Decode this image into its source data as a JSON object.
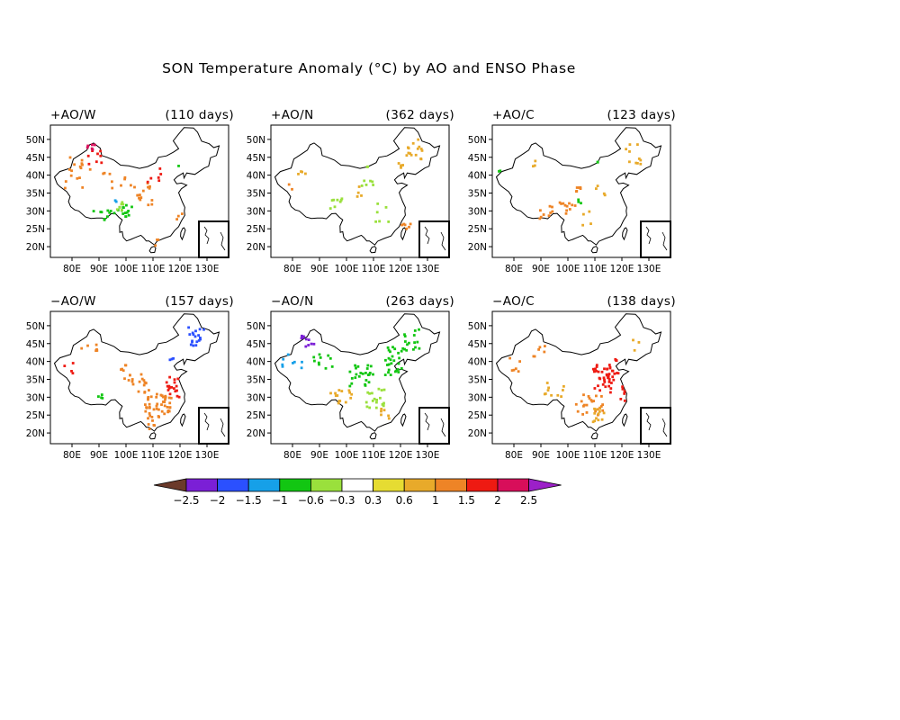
{
  "title": "SON Temperature Anomaly (°C) by AO and ENSO Phase",
  "x_ticks": [
    "80E",
    "90E",
    "100E",
    "110E",
    "120E",
    "130E"
  ],
  "y_ticks": [
    "50N",
    "45N",
    "40N",
    "35N",
    "30N",
    "25N",
    "20N"
  ],
  "panels": [
    {
      "label": "+AO/W",
      "days": "(110 days)"
    },
    {
      "label": "+AO/N",
      "days": "(362 days)"
    },
    {
      "label": "+AO/C",
      "days": "(123 days)"
    },
    {
      "label": "−AO/W",
      "days": "(157 days)"
    },
    {
      "label": "−AO/N",
      "days": "(263 days)"
    },
    {
      "label": "−AO/C",
      "days": "(138 days)"
    }
  ],
  "colorbar": {
    "labels": [
      "−2.5",
      "−2",
      "−1.5",
      "−1",
      "−0.6",
      "−0.3",
      "0.3",
      "0.6",
      "1",
      "1.5",
      "2",
      "2.5"
    ],
    "colors": [
      "#6b3a2a",
      "#7b1fd6",
      "#2b50ff",
      "#16a0e8",
      "#12c612",
      "#9ae03c",
      "#ffffff",
      "#e6dc32",
      "#e8aa2a",
      "#ee8426",
      "#ee1a12",
      "#d80e5a",
      "#9c20c8"
    ]
  }
}
